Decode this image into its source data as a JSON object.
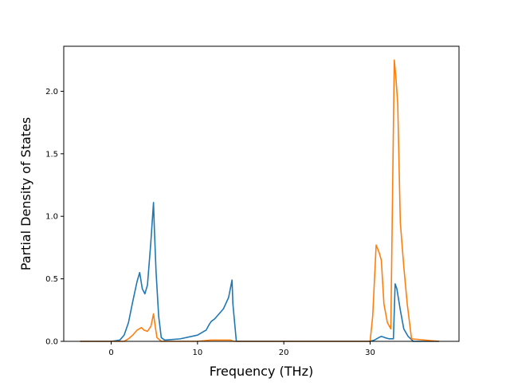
{
  "chart_data": {
    "type": "line",
    "xlabel": "Frequency (THz)",
    "ylabel": "Partial Density of States",
    "xlim": [
      -5.5,
      40.3
    ],
    "ylim": [
      0,
      2.36
    ],
    "xticks": [
      0,
      10,
      20,
      30
    ],
    "xtick_labels": [
      "0",
      "10",
      "20",
      "30"
    ],
    "yticks": [
      0.0,
      0.5,
      1.0,
      1.5,
      2.0
    ],
    "ytick_labels": [
      "0.0",
      "0.5",
      "1.0",
      "1.5",
      "2.0"
    ],
    "grid": false,
    "legend": "none",
    "series": [
      {
        "color": "#1f77b4",
        "x": [
          -3.6,
          0.0,
          1.0,
          1.5,
          2.0,
          2.5,
          3.0,
          3.3,
          3.6,
          3.9,
          4.2,
          4.6,
          4.9,
          5.0,
          5.2,
          5.5,
          5.8,
          6.2,
          8,
          10,
          11,
          11.4,
          11.6,
          12,
          13,
          13.6,
          14.0,
          14.1,
          14.5,
          15,
          20,
          25,
          30,
          30.5,
          31.0,
          31.3,
          31.7,
          32.2,
          32.7,
          32.9,
          33.1,
          33.5,
          33.9,
          34.4,
          35,
          38
        ],
        "values": [
          0,
          0,
          0.01,
          0.05,
          0.15,
          0.32,
          0.48,
          0.55,
          0.42,
          0.38,
          0.45,
          0.8,
          1.11,
          0.9,
          0.55,
          0.2,
          0.03,
          0.01,
          0.02,
          0.05,
          0.09,
          0.14,
          0.16,
          0.18,
          0.26,
          0.35,
          0.49,
          0.3,
          0,
          0,
          0,
          0,
          0,
          0.01,
          0.03,
          0.04,
          0.03,
          0.02,
          0.02,
          0.46,
          0.42,
          0.25,
          0.1,
          0.04,
          0,
          0
        ]
      },
      {
        "color": "#ff7f0e",
        "x": [
          -3.6,
          0.0,
          1.5,
          2.0,
          2.5,
          3.0,
          3.5,
          3.8,
          4.2,
          4.6,
          4.9,
          5.1,
          5.3,
          5.8,
          6.2,
          8,
          10,
          11.5,
          13,
          13.8,
          14.2,
          15,
          20,
          25,
          30,
          30.3,
          30.7,
          31.0,
          31.3,
          31.6,
          32.0,
          32.4,
          32.8,
          33.0,
          33.2,
          33.5,
          33.9,
          34.3,
          34.8,
          38
        ],
        "values": [
          0,
          0,
          0,
          0.02,
          0.05,
          0.09,
          0.11,
          0.09,
          0.08,
          0.12,
          0.22,
          0.12,
          0.03,
          0,
          0,
          0,
          0,
          0.01,
          0.01,
          0.01,
          0,
          0,
          0,
          0,
          0,
          0.2,
          0.77,
          0.72,
          0.65,
          0.3,
          0.15,
          0.1,
          2.25,
          2.1,
          1.9,
          0.95,
          0.6,
          0.3,
          0.02,
          0
        ]
      }
    ]
  }
}
